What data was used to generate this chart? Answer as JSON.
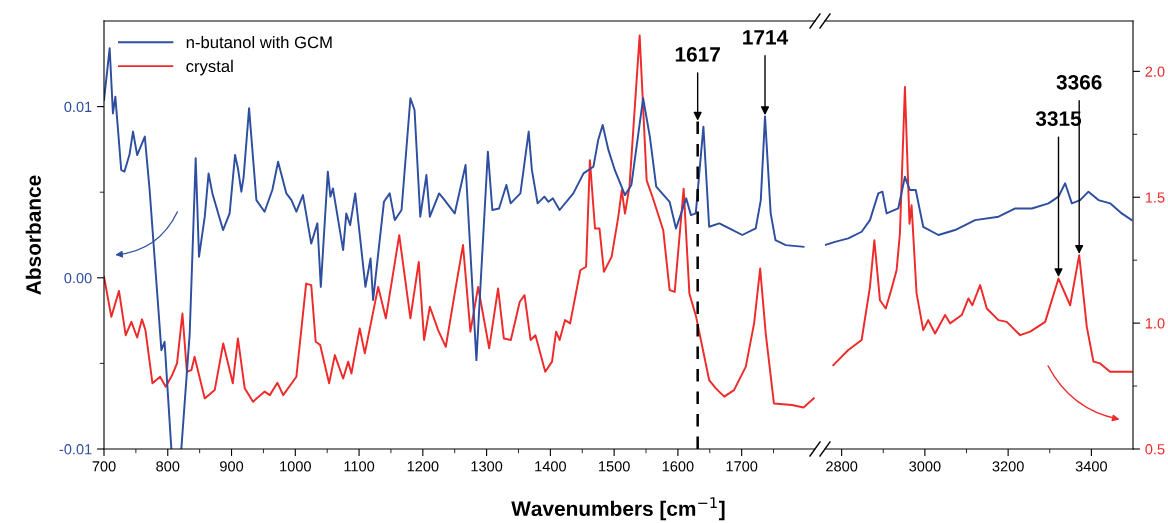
{
  "chart_data": [
    {
      "type": "line",
      "ylabel": "Absorbance",
      "xlabel": "Wavenumbers [cm$^{−1}$]",
      "legend": "top left",
      "grid": false,
      "xlim": [
        700,
        1815
      ],
      "xticks": [
        700,
        {
          "value": 750,
          "label": null
        },
        800,
        {
          "value": 850,
          "label": null
        },
        900,
        {
          "value": 950,
          "label": null
        },
        1000,
        {
          "value": 1050,
          "label": null
        },
        1100,
        {
          "value": 1150,
          "label": null
        },
        1200,
        {
          "value": 1250,
          "label": null
        },
        1300,
        {
          "value": 1350,
          "label": null
        },
        1400,
        {
          "value": 1450,
          "label": null
        },
        1500,
        {
          "value": 1550,
          "label": null
        },
        1600,
        {
          "value": 1650,
          "label": null
        },
        1700,
        {
          "value": 1750,
          "label": null
        }
      ],
      "ylim": [
        -0.01,
        0.015
      ],
      "yticks": [
        {
          "value": -0.01,
          "label": "-0.01"
        },
        {
          "value": -0.005,
          "label": null
        },
        {
          "value": 0,
          "label": "0.00"
        },
        {
          "value": 0.005,
          "label": null
        },
        {
          "value": 0.01,
          "label": "0.01"
        }
      ],
      "y2lim": [
        0.5,
        2.2
      ],
      "ref_lines": [
        {
          "axis": "x",
          "value": 1631,
          "color": "#000000",
          "line_style": "dashed"
        }
      ],
      "annotations": [
        {
          "text": "1617",
          "x": 1631,
          "y": 0.0091
        },
        {
          "text": "1714",
          "x": 1736.6,
          "y": 0.00942
        }
      ],
      "series": [
        {
          "name": "n-butanol with GCM",
          "color": "#2e4ea0",
          "axis": "y",
          "x": [
            700,
            708.9,
            714,
            717.8,
            727,
            732,
            740,
            745.5,
            752,
            764,
            771.6,
            790,
            795,
            805.6,
            810,
            821.3,
            834.4,
            843.8,
            849,
            858,
            864,
            870,
            886.7,
            897,
            905.5,
            910,
            915.4,
            919,
            927.5,
            939,
            951.8,
            964,
            973,
            986,
            994,
            1001.7,
            1012,
            1025,
            1034.6,
            1040,
            1051,
            1055,
            1059,
            1075,
            1080,
            1086,
            1094,
            1110,
            1118,
            1122,
            1139,
            1148,
            1156,
            1166.6,
            1180.5,
            1187,
            1196,
            1205.6,
            1211,
            1225.5,
            1232,
            1250,
            1267,
            1284,
            1302,
            1309,
            1319.5,
            1331,
            1337.7,
            1353,
            1366,
            1371,
            1380,
            1390.6,
            1397,
            1404,
            1414.5,
            1436,
            1452,
            1467.5,
            1475,
            1482,
            1491,
            1501,
            1517,
            1527,
            1545.5,
            1556,
            1566,
            1587,
            1597,
            1613,
            1620.5,
            1628,
            1640,
            1649,
            1665,
            1686,
            1701,
            1722,
            1730,
            1736.6,
            1745.5,
            1753,
            1769,
            1797
          ],
          "values": [
            0.01039,
            0.01341,
            0.0096,
            0.01058,
            0.0063,
            0.0062,
            0.0072,
            0.00854,
            0.00717,
            0.00825,
            0.0051,
            -0.00423,
            -0.00374,
            -0.00998,
            null,
            -0.00998,
            -0.00326,
            0.00698,
            0.00123,
            0.00357,
            0.0061,
            0.00493,
            0.00279,
            0.00376,
            0.00717,
            0.0064,
            0.00503,
            0.0059,
            0.0099,
            0.00454,
            0.00386,
            0.00513,
            0.00678,
            0.00493,
            0.00454,
            0.00386,
            0.00483,
            0.002,
            0.00318,
            -0.00053,
            0.0062,
            0.00474,
            0.00522,
            0.00162,
            0.00376,
            0.00308,
            0.00493,
            -0.00053,
            0.00113,
            -0.0013,
            0.00444,
            0.00493,
            0.00337,
            0.00396,
            0.01049,
            0.0098,
            0.00357,
            0.006,
            0.00357,
            0.00493,
            0.00464,
            0.00376,
            0.00659,
            -0.00481,
            0.00737,
            0.00396,
            0.00405,
            0.00542,
            0.00435,
            0.00493,
            0.00854,
            0.0063,
            0.00435,
            0.00474,
            0.00444,
            0.00464,
            0.00396,
            0.00493,
            0.0061,
            0.00649,
            0.00805,
            0.00893,
            0.00747,
            0.0063,
            0.00483,
            0.00542,
            0.01049,
            0.00825,
            0.00532,
            0.00444,
            0.00288,
            0.00464,
            0.00366,
            0.00376,
            0.00883,
            0.00298,
            0.00318,
            0.00279,
            0.0025,
            0.00288,
            0.00454,
            0.00942,
            0.00376,
            0.0022,
            0.00191,
            0.00181
          ]
        },
        {
          "name": "crystal",
          "color": "#ee2a2a",
          "axis": "y2",
          "x": [
            700,
            711.5,
            723.5,
            734,
            743,
            752,
            759.6,
            765,
            776,
            788,
            796.7,
            807,
            814.5,
            823,
            830,
            837,
            842,
            858,
            873.6,
            887,
            902,
            910,
            920.7,
            933.7,
            952,
            960,
            972,
            981,
            1001.7,
            1017,
            1025,
            1032,
            1039,
            1053,
            1062,
            1075,
            1083,
            1088,
            1101,
            1109,
            1130,
            1142,
            1163,
            1180.5,
            1193.6,
            1202,
            1211,
            1224,
            1236,
            1250,
            1263,
            1274.6,
            1286.7,
            1304,
            1318,
            1327,
            1338,
            1352,
            1359.5,
            1369,
            1376.6,
            1392,
            1402.6,
            1409,
            1414.5,
            1423,
            1431,
            1447,
            1456,
            1462,
            1470,
            1477,
            1484,
            1496,
            1506.5,
            1512,
            1517,
            1524,
            1540,
            1551,
            1561,
            1577,
            1587,
            1595,
            1609,
            1618,
            1628.6,
            1649,
            1659.5,
            1672.7,
            1688,
            1706.5,
            1719.5,
            1729,
            1737.7,
            1750.6,
            1779,
            1797,
            1813
          ],
          "values": [
            1.184,
            1.025,
            1.128,
            0.952,
            1.005,
            0.943,
            1.015,
            0.972,
            0.761,
            0.787,
            0.747,
            0.794,
            0.84,
            1.038,
            0.807,
            0.813,
            0.866,
            0.701,
            0.734,
            0.919,
            0.761,
            0.939,
            0.741,
            0.688,
            0.728,
            0.714,
            0.763,
            0.714,
            0.787,
            1.157,
            1.151,
            0.926,
            0.913,
            0.761,
            0.873,
            0.78,
            0.847,
            0.8,
            0.979,
            0.88,
            1.144,
            1.019,
            1.349,
            1.019,
            1.243,
            0.933,
            1.065,
            0.972,
            0.906,
            1.118,
            1.31,
            0.966,
            1.144,
            0.9,
            1.138,
            0.939,
            0.933,
            1.085,
            1.111,
            0.933,
            0.952,
            0.807,
            0.847,
            0.966,
            0.933,
            1.012,
            0.999,
            1.21,
            1.224,
            1.647,
            1.376,
            1.376,
            1.204,
            1.263,
            1.422,
            1.528,
            1.435,
            1.541,
            2.143,
            1.567,
            1.495,
            1.369,
            1.131,
            1.124,
            1.534,
            1.118,
            1.025,
            0.774,
            0.741,
            0.708,
            0.734,
            0.827,
            0.999,
            1.217,
            0.959,
            0.681,
            0.675,
            0.665,
            0.701
          ]
        }
      ]
    },
    {
      "type": "line",
      "grid": false,
      "xlim": [
        2760,
        3500
      ],
      "xticks": [
        2800,
        {
          "value": 2900,
          "label": null
        },
        3000,
        {
          "value": 3100,
          "label": null
        },
        3200,
        {
          "value": 3300,
          "label": null
        },
        3400
      ],
      "ylim": [
        -0.01,
        0.015
      ],
      "y2lim": [
        0.5,
        2.2
      ],
      "y2ticks": [
        0.5,
        {
          "value": 0.75,
          "label": null
        },
        {
          "value": 1,
          "label": "1.0"
        },
        {
          "value": 1.25,
          "label": null
        },
        1.5,
        {
          "value": 1.75,
          "label": null
        },
        {
          "value": 2,
          "label": "2.0"
        }
      ],
      "annotations": [
        {
          "text": "3315",
          "x": 3321,
          "y": -4e-05
        },
        {
          "text": "3366",
          "x": 3370.7,
          "y": 0.00132
        }
      ],
      "series": [
        {
          "color": "#2e4ea0",
          "axis": "y",
          "x": [
            2760,
            2784,
            2816,
            2848,
            2868,
            2888,
            2898,
            2908,
            2936,
            2952,
            2964,
            2978,
            2996,
            3032.5,
            3072.5,
            3120.6,
            3177,
            3217,
            3257,
            3297,
            3321,
            3337,
            3353,
            3373,
            3393,
            3417,
            3445,
            3473,
            3497
          ],
          "values": [
            0.00191,
            0.0021,
            0.0023,
            0.00269,
            0.00337,
            0.00493,
            0.00503,
            0.00376,
            0.00405,
            0.0059,
            0.00513,
            0.00513,
            0.00298,
            0.0025,
            0.00279,
            0.00337,
            0.00357,
            0.00405,
            0.00405,
            0.00435,
            0.00474,
            0.00552,
            0.00435,
            0.00454,
            0.00503,
            0.00454,
            0.00435,
            0.00376,
            0.00337
          ]
        },
        {
          "color": "#ee2a2a",
          "axis": "y2",
          "x": [
            2780,
            2816,
            2848,
            2868,
            2878.6,
            2892,
            2906,
            2919,
            2932,
            2940,
            2952,
            2963,
            2968,
            2980,
            2996,
            3008,
            3024.5,
            3048.5,
            3060.5,
            3088.6,
            3104.6,
            3114,
            3132.7,
            3148.7,
            3176.8,
            3196.8,
            3228.9,
            3253,
            3289,
            3321,
            3349,
            3370.7,
            3389,
            3405,
            3421,
            3445,
            3497
          ],
          "values": [
            0.833,
            0.893,
            0.933,
            1.144,
            1.329,
            1.091,
            1.058,
            1.131,
            1.21,
            1.356,
            1.938,
            1.395,
            1.468,
            1.118,
            0.972,
            1.012,
            0.959,
            1.032,
            0.999,
            1.032,
            1.098,
            1.071,
            1.151,
            1.058,
            1.012,
            1.005,
            0.952,
            0.966,
            1.005,
            1.177,
            1.071,
            1.27,
            0.985,
            0.847,
            0.84,
            0.807,
            0.807
          ]
        }
      ]
    }
  ]
}
